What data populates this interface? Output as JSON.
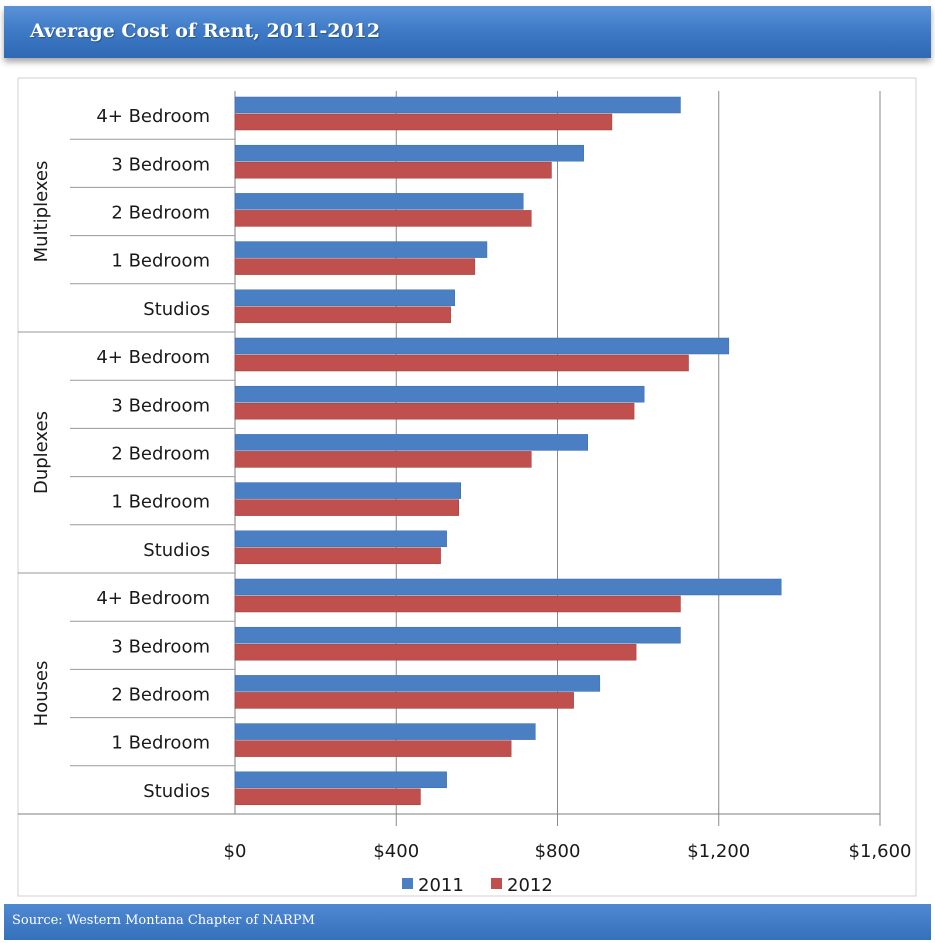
{
  "title": "Average Cost of Rent, 2011-2012",
  "source": "Source: Western Montana Chapter of NARPM",
  "chart_data": {
    "type": "bar",
    "orientation": "horizontal",
    "xlim": [
      0,
      1600
    ],
    "x_ticks": [
      "$0",
      "$400",
      "$800",
      "$1,200",
      "$1,600"
    ],
    "x_tick_values": [
      0,
      400,
      800,
      1200,
      1600
    ],
    "grid": true,
    "legend": "bottom",
    "groups": [
      {
        "name": "Multiplexes",
        "categories": [
          "4+ Bedroom",
          "3 Bedroom",
          "2 Bedroom",
          "1 Bedroom",
          "Studios"
        ]
      },
      {
        "name": "Duplexes",
        "categories": [
          "4+ Bedroom",
          "3 Bedroom",
          "2 Bedroom",
          "1 Bedroom",
          "Studios"
        ]
      },
      {
        "name": "Houses",
        "categories": [
          "4+ Bedroom",
          "3 Bedroom",
          "2 Bedroom",
          "1 Bedroom",
          "Studios"
        ]
      }
    ],
    "series": [
      {
        "name": "2011",
        "color": "#4a7fc4",
        "values": [
          1105,
          865,
          715,
          625,
          545,
          1225,
          1015,
          875,
          560,
          525,
          1355,
          1105,
          905,
          745,
          525
        ]
      },
      {
        "name": "2012",
        "color": "#c0504d",
        "values": [
          935,
          785,
          735,
          595,
          535,
          1125,
          990,
          735,
          555,
          510,
          1105,
          995,
          840,
          685,
          460
        ]
      }
    ]
  }
}
